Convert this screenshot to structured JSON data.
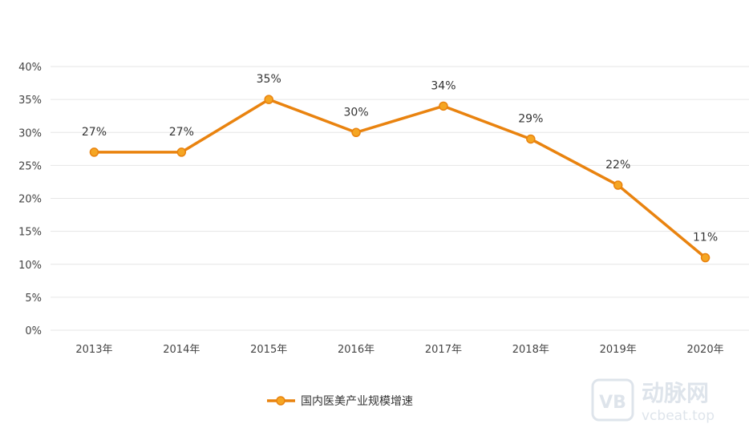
{
  "chart_data": {
    "type": "line",
    "categories": [
      "2013年",
      "2014年",
      "2015年",
      "2016年",
      "2017年",
      "2018年",
      "2019年",
      "2020年"
    ],
    "series": [
      {
        "name": "国内医美产业规模增速",
        "values": [
          27,
          27,
          35,
          30,
          34,
          29,
          22,
          11
        ],
        "data_labels": [
          "27%",
          "27%",
          "35%",
          "30%",
          "34%",
          "29%",
          "22%",
          "11%"
        ]
      }
    ],
    "y_ticks": [
      "0%",
      "5%",
      "10%",
      "15%",
      "20%",
      "25%",
      "30%",
      "35%",
      "40%"
    ],
    "ylim": [
      0,
      40
    ],
    "y_step": 5,
    "grid": true,
    "legend_position": "bottom",
    "title": "",
    "xlabel": "",
    "ylabel": "",
    "colors": {
      "line": "#E9830F",
      "marker_fill": "#F5A623",
      "grid": "#E6E6E6"
    }
  },
  "watermark": {
    "brand_cn": "动脉网",
    "brand_url": "vcbeat.top",
    "logo_letter": "VB"
  }
}
